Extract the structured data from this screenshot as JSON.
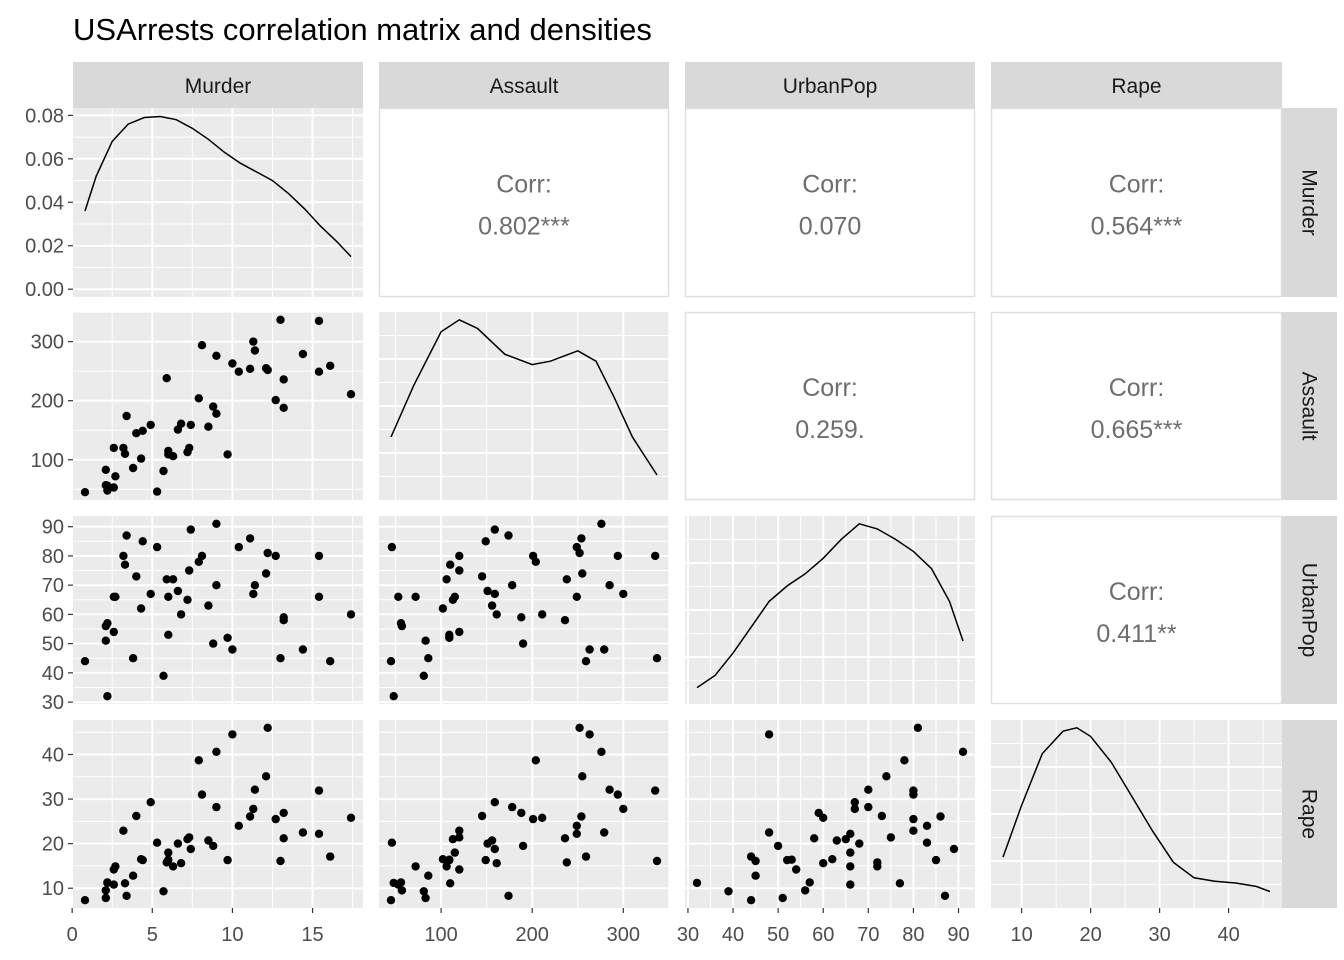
{
  "title": "USArrests correlation matrix and densities",
  "variables": [
    "Murder",
    "Assault",
    "UrbanPop",
    "Rape"
  ],
  "colors": {
    "panel_bg": "#EBEBEB",
    "grid": "#FFFFFF",
    "strip_bg": "#D9D9D9",
    "corr_border": "#E0E0E0",
    "corr_text": "#6E6E6E",
    "point": "#000000",
    "line": "#000000"
  },
  "chart_data": {
    "type": "scatter",
    "layout": "pairs-matrix",
    "diagonal": "density",
    "lower": "scatter",
    "upper": "correlation",
    "axes": {
      "Murder": {
        "lim": [
          0.8,
          17.4
        ],
        "breaks": [
          0,
          5,
          10,
          15
        ],
        "y_breaks": [
          0.0,
          0.02,
          0.04,
          0.06,
          0.08
        ],
        "y_labels": [
          "0.00",
          "0.02",
          "0.04",
          "0.06",
          "0.08"
        ],
        "density_ylim": [
          0,
          0.0798
        ]
      },
      "Assault": {
        "lim": [
          45,
          337
        ],
        "breaks": [
          100,
          200,
          300
        ],
        "y_labels": [
          "100",
          "200",
          "300"
        ]
      },
      "UrbanPop": {
        "lim": [
          32,
          91
        ],
        "breaks": [
          30,
          40,
          50,
          60,
          70,
          80,
          90
        ],
        "y_labels": [
          "30",
          "40",
          "50",
          "60",
          "70",
          "80",
          "90"
        ]
      },
      "Rape": {
        "lim": [
          7.3,
          46
        ],
        "breaks": [
          10,
          20,
          30,
          40
        ],
        "y_labels": [
          "10",
          "20",
          "30",
          "40"
        ]
      }
    },
    "correlations": [
      {
        "row": "Murder",
        "col": "Assault",
        "label": "Corr:",
        "value": "0.802***"
      },
      {
        "row": "Murder",
        "col": "UrbanPop",
        "label": "Corr:",
        "value": "0.070"
      },
      {
        "row": "Murder",
        "col": "Rape",
        "label": "Corr:",
        "value": "0.564***"
      },
      {
        "row": "Assault",
        "col": "UrbanPop",
        "label": "Corr:",
        "value": "0.259."
      },
      {
        "row": "Assault",
        "col": "Rape",
        "label": "Corr:",
        "value": "0.665***"
      },
      {
        "row": "UrbanPop",
        "col": "Rape",
        "label": "Corr:",
        "value": "0.411**"
      }
    ],
    "densities": {
      "Murder": {
        "x": [
          0.8,
          1.5,
          2.5,
          3.5,
          4.5,
          5.5,
          6.5,
          7.5,
          8.5,
          9.5,
          10.5,
          11.5,
          12.5,
          13.5,
          14.5,
          15.5,
          16.5,
          17.4
        ],
        "y": [
          0.036,
          0.052,
          0.068,
          0.076,
          0.079,
          0.0795,
          0.078,
          0.074,
          0.069,
          0.063,
          0.058,
          0.054,
          0.05,
          0.044,
          0.037,
          0.029,
          0.022,
          0.015
        ]
      },
      "Assault": {
        "x": [
          45,
          70,
          100,
          120,
          140,
          170,
          200,
          220,
          250,
          270,
          290,
          310,
          337
        ],
        "range": [
          0,
          1
        ],
        "y": [
          0.32,
          0.62,
          0.93,
          1.0,
          0.95,
          0.8,
          0.74,
          0.76,
          0.82,
          0.76,
          0.55,
          0.32,
          0.1
        ]
      },
      "UrbanPop": {
        "x": [
          32,
          36,
          40,
          44,
          48,
          52,
          56,
          60,
          64,
          68,
          72,
          76,
          80,
          84,
          88,
          91
        ],
        "range": [
          0,
          1
        ],
        "y": [
          0.05,
          0.12,
          0.25,
          0.4,
          0.55,
          0.64,
          0.71,
          0.8,
          0.91,
          1.0,
          0.97,
          0.91,
          0.84,
          0.74,
          0.55,
          0.32
        ]
      },
      "Rape": {
        "x": [
          7.3,
          10,
          13,
          16,
          18,
          20,
          23,
          26,
          29,
          32,
          35,
          38,
          41,
          44,
          46
        ],
        "range": [
          0,
          1
        ],
        "y": [
          0.25,
          0.55,
          0.85,
          0.98,
          1.0,
          0.95,
          0.8,
          0.6,
          0.4,
          0.22,
          0.13,
          0.11,
          0.1,
          0.08,
          0.05
        ]
      }
    },
    "points": {
      "Murder": [
        13.2,
        10.0,
        8.1,
        8.8,
        9.0,
        7.9,
        3.3,
        5.9,
        15.4,
        17.4,
        5.3,
        2.6,
        10.4,
        7.2,
        2.2,
        6.0,
        9.7,
        15.4,
        2.1,
        11.3,
        4.4,
        12.1,
        2.7,
        16.1,
        9.0,
        6.0,
        4.3,
        12.2,
        2.1,
        7.4,
        11.4,
        11.1,
        13.0,
        0.8,
        7.3,
        6.6,
        4.9,
        6.3,
        3.4,
        14.4,
        3.8,
        13.2,
        12.7,
        3.2,
        2.2,
        8.5,
        4.0,
        5.7,
        2.6,
        6.8
      ],
      "Assault": [
        236,
        263,
        294,
        190,
        276,
        204,
        110,
        238,
        335,
        211,
        46,
        120,
        249,
        113,
        56,
        115,
        109,
        249,
        83,
        300,
        149,
        255,
        72,
        259,
        178,
        109,
        102,
        252,
        57,
        159,
        285,
        254,
        337,
        45,
        120,
        151,
        159,
        106,
        174,
        279,
        86,
        188,
        201,
        120,
        48,
        156,
        145,
        81,
        53,
        161
      ],
      "UrbanPop": [
        58,
        48,
        80,
        50,
        91,
        78,
        77,
        72,
        80,
        60,
        83,
        54,
        83,
        65,
        57,
        66,
        52,
        66,
        51,
        67,
        85,
        74,
        66,
        44,
        70,
        53,
        62,
        81,
        56,
        89,
        70,
        86,
        45,
        44,
        75,
        68,
        67,
        72,
        87,
        48,
        45,
        59,
        80,
        80,
        32,
        63,
        73,
        39,
        66,
        60
      ],
      "Rape": [
        21.2,
        44.5,
        31.0,
        19.5,
        40.6,
        38.7,
        11.1,
        15.8,
        31.9,
        25.8,
        20.2,
        14.2,
        24.0,
        21.0,
        11.3,
        18.0,
        16.3,
        22.2,
        7.8,
        27.8,
        16.3,
        35.1,
        14.9,
        17.1,
        28.2,
        16.4,
        16.5,
        46.0,
        9.5,
        18.8,
        32.1,
        26.1,
        16.1,
        7.3,
        21.4,
        20.0,
        29.3,
        14.9,
        8.3,
        22.5,
        12.8,
        26.9,
        25.5,
        22.9,
        11.2,
        20.7,
        26.2,
        9.3,
        10.8,
        15.6
      ]
    }
  }
}
